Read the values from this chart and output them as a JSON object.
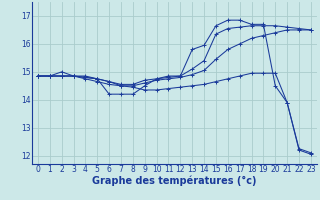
{
  "bg_color": "#cce8e8",
  "grid_color": "#aacccc",
  "line_color": "#1a3a9a",
  "xlabel": "Graphe des températures (°c)",
  "xlabel_fontsize": 7,
  "tick_fontsize": 5.5,
  "xlim": [
    -0.5,
    23.5
  ],
  "ylim": [
    11.7,
    17.5
  ],
  "yticks": [
    12,
    13,
    14,
    15,
    16,
    17
  ],
  "xticks": [
    0,
    1,
    2,
    3,
    4,
    5,
    6,
    7,
    8,
    9,
    10,
    11,
    12,
    13,
    14,
    15,
    16,
    17,
    18,
    19,
    20,
    21,
    22,
    23
  ],
  "series1_x": [
    0,
    1,
    2,
    3,
    4,
    5,
    6,
    7,
    8,
    9,
    10,
    11,
    12,
    13,
    14,
    15,
    16,
    17,
    18,
    19,
    20,
    21,
    22,
    23
  ],
  "series1_y": [
    14.85,
    14.85,
    15.0,
    14.85,
    14.85,
    14.75,
    14.2,
    14.2,
    14.2,
    14.5,
    14.75,
    14.85,
    14.85,
    15.8,
    15.95,
    16.65,
    16.85,
    16.85,
    16.7,
    16.7,
    14.5,
    13.9,
    12.25,
    12.1
  ],
  "series2_x": [
    0,
    1,
    2,
    3,
    4,
    5,
    6,
    7,
    8,
    9,
    10,
    11,
    12,
    13,
    14,
    15,
    16,
    17,
    18,
    19,
    20,
    21,
    22,
    23
  ],
  "series2_y": [
    14.85,
    14.85,
    14.85,
    14.85,
    14.8,
    14.75,
    14.65,
    14.55,
    14.55,
    14.7,
    14.75,
    14.8,
    14.85,
    15.1,
    15.4,
    16.35,
    16.55,
    16.6,
    16.65,
    16.65,
    16.65,
    16.6,
    16.55,
    16.5
  ],
  "series3_x": [
    0,
    1,
    2,
    3,
    4,
    5,
    6,
    7,
    8,
    9,
    10,
    11,
    12,
    13,
    14,
    15,
    16,
    17,
    18,
    19,
    20,
    21,
    22,
    23
  ],
  "series3_y": [
    14.85,
    14.85,
    14.85,
    14.85,
    14.8,
    14.75,
    14.65,
    14.5,
    14.5,
    14.6,
    14.7,
    14.75,
    14.8,
    14.9,
    15.05,
    15.45,
    15.8,
    16.0,
    16.2,
    16.3,
    16.4,
    16.5,
    16.5,
    16.5
  ],
  "series4_x": [
    0,
    1,
    2,
    3,
    4,
    5,
    6,
    7,
    8,
    9,
    10,
    11,
    12,
    13,
    14,
    15,
    16,
    17,
    18,
    19,
    20,
    21,
    22,
    23
  ],
  "series4_y": [
    14.85,
    14.85,
    14.85,
    14.85,
    14.75,
    14.65,
    14.55,
    14.5,
    14.45,
    14.35,
    14.35,
    14.4,
    14.45,
    14.5,
    14.55,
    14.65,
    14.75,
    14.85,
    14.95,
    14.95,
    14.95,
    13.9,
    12.2,
    12.05
  ]
}
